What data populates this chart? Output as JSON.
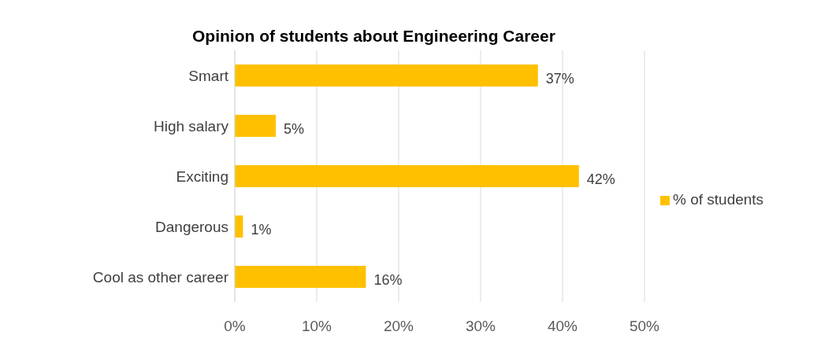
{
  "chart_data": {
    "type": "bar",
    "orientation": "horizontal",
    "title": "Opinion of students about Engineering Career",
    "categories": [
      "Smart",
      "High salary",
      "Exciting",
      "Dangerous",
      "Cool as other career"
    ],
    "series": [
      {
        "name": "% of students",
        "color": "#ffc000",
        "values": [
          37,
          5,
          42,
          1,
          16
        ],
        "value_labels": [
          "37%",
          "5%",
          "42%",
          "1%",
          "16%"
        ]
      }
    ],
    "xlim": [
      0,
      50
    ],
    "xticks": [
      {
        "value": 0,
        "label": "0%"
      },
      {
        "value": 10,
        "label": "10%"
      },
      {
        "value": 20,
        "label": "20%"
      },
      {
        "value": 30,
        "label": "30%"
      },
      {
        "value": 40,
        "label": "40%"
      },
      {
        "value": 50,
        "label": "50%"
      }
    ],
    "grid": "x",
    "legend": "right"
  }
}
